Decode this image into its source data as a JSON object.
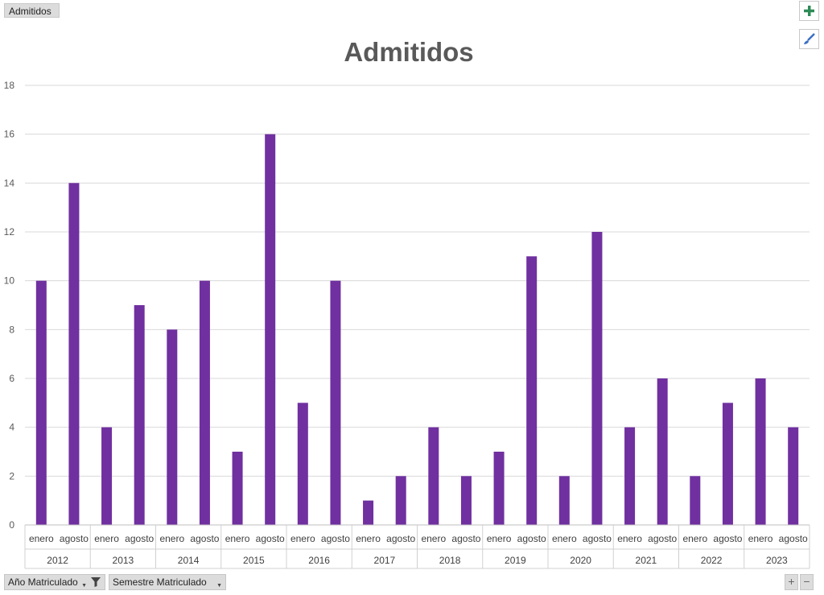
{
  "field_button": {
    "label": "Admitidos"
  },
  "side_buttons": {
    "add": "plus-icon",
    "style": "brush-icon"
  },
  "filters": [
    {
      "label": "Año Matriculado",
      "icons": [
        "chevron-down-icon",
        "filter-icon"
      ]
    },
    {
      "label": "Semestre Matriculado",
      "icons": [
        "chevron-down-icon"
      ]
    }
  ],
  "zoom": {
    "plus": "+",
    "minus": "−"
  },
  "colors": {
    "bar": "#7030A0",
    "grid": "#d9d9d9",
    "axis_text": "#595959",
    "title": "#595959"
  },
  "chart_data": {
    "type": "bar",
    "title": "Admitidos",
    "ylim": [
      0,
      18
    ],
    "yticks": [
      0,
      2,
      4,
      6,
      8,
      10,
      12,
      14,
      16,
      18
    ],
    "grid": true,
    "legend": "none",
    "groups": [
      "2012",
      "2013",
      "2014",
      "2015",
      "2016",
      "2017",
      "2018",
      "2019",
      "2020",
      "2021",
      "2022",
      "2023"
    ],
    "subcategories": [
      "enero",
      "agosto"
    ],
    "series": [
      {
        "values": [
          10,
          14,
          4,
          9,
          8,
          10,
          3,
          16,
          5,
          10,
          1,
          2,
          4,
          2,
          3,
          11,
          2,
          12,
          4,
          6,
          2,
          5,
          6,
          4
        ]
      }
    ]
  }
}
